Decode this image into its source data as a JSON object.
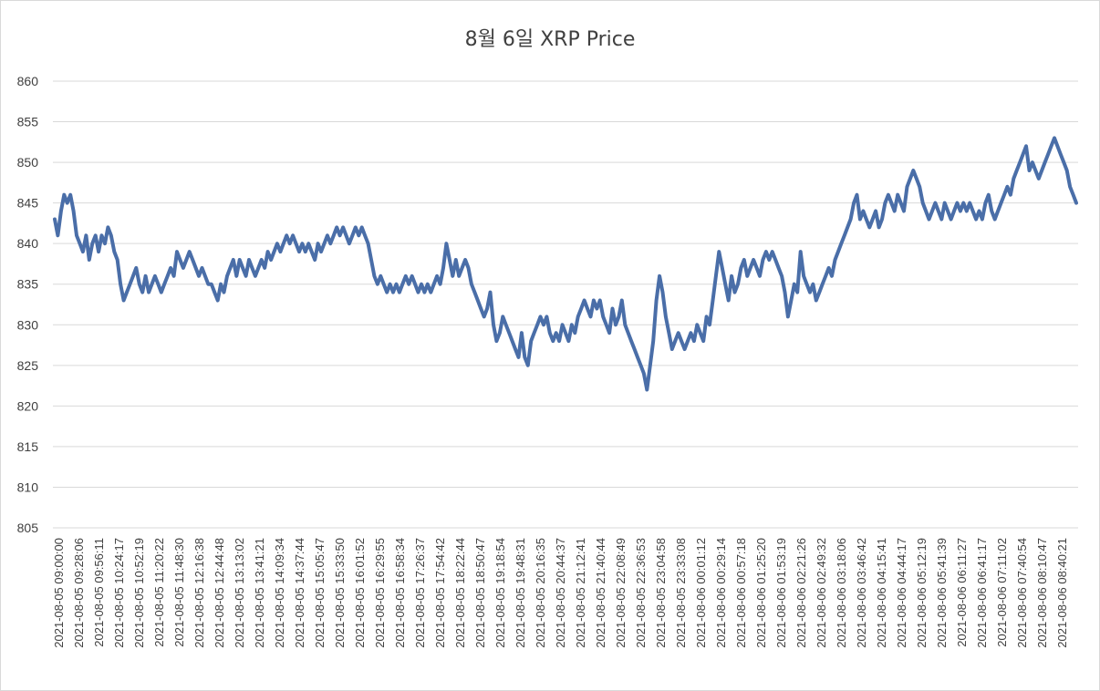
{
  "chart_data": {
    "type": "line",
    "title": "8월 6일 XRP Price",
    "xlabel": "",
    "ylabel": "",
    "ylim": [
      805,
      860
    ],
    "yticks": [
      805,
      810,
      815,
      820,
      825,
      830,
      835,
      840,
      845,
      850,
      855,
      860
    ],
    "grid": true,
    "legend": "none",
    "color": "#4a6ea8",
    "x_tick_labels": [
      "2021-08-05 09:00:00",
      "2021-08-05 09:28:06",
      "2021-08-05 09:56:11",
      "2021-08-05 10:24:17",
      "2021-08-05 10:52:19",
      "2021-08-05 11:20:22",
      "2021-08-05 11:48:30",
      "2021-08-05 12:16:38",
      "2021-08-05 12:44:48",
      "2021-08-05 13:13:02",
      "2021-08-05 13:41:21",
      "2021-08-05 14:09:34",
      "2021-08-05 14:37:44",
      "2021-08-05 15:05:47",
      "2021-08-05 15:33:50",
      "2021-08-05 16:01:52",
      "2021-08-05 16:29:55",
      "2021-08-05 16:58:34",
      "2021-08-05 17:26:37",
      "2021-08-05 17:54:42",
      "2021-08-05 18:22:44",
      "2021-08-05 18:50:47",
      "2021-08-05 19:18:54",
      "2021-08-05 19:48:31",
      "2021-08-05 20:16:35",
      "2021-08-05 20:44:37",
      "2021-08-05 21:12:41",
      "2021-08-05 21:40:44",
      "2021-08-05 22:08:49",
      "2021-08-05 22:36:53",
      "2021-08-05 23:04:58",
      "2021-08-05 23:33:08",
      "2021-08-06 00:01:12",
      "2021-08-06 00:29:14",
      "2021-08-06 00:57:18",
      "2021-08-06 01:25:20",
      "2021-08-06 01:53:19",
      "2021-08-06 02:21:26",
      "2021-08-06 02:49:32",
      "2021-08-06 03:18:06",
      "2021-08-06 03:46:42",
      "2021-08-06 04:15:41",
      "2021-08-06 04:44:17",
      "2021-08-06 05:12:19",
      "2021-08-06 05:41:39",
      "2021-08-06 06:11:27",
      "2021-08-06 06:41:17",
      "2021-08-06 07:11:02",
      "2021-08-06 07:40:54",
      "2021-08-06 08:10:47",
      "2021-08-06 08:40:21"
    ],
    "series": [
      {
        "values": [
          843,
          841,
          844,
          846,
          845,
          846,
          844,
          841,
          840,
          839,
          841,
          838,
          840,
          841,
          839,
          841,
          840,
          842,
          841,
          839,
          838,
          835,
          833,
          834,
          835,
          836,
          837,
          835,
          834,
          836,
          834,
          835,
          836,
          835,
          834,
          835,
          836,
          837,
          836,
          839,
          838,
          837,
          838,
          839,
          838,
          837,
          836,
          837,
          836,
          835,
          835,
          834,
          833,
          835,
          834,
          836,
          837,
          838,
          836,
          838,
          837,
          836,
          838,
          837,
          836,
          837,
          838,
          837,
          839,
          838,
          839,
          840,
          839,
          840,
          841,
          840,
          841,
          840,
          839,
          840,
          839,
          840,
          839,
          838,
          840,
          839,
          840,
          841,
          840,
          841,
          842,
          841,
          842,
          841,
          840,
          841,
          842,
          841,
          842,
          841,
          840,
          838,
          836,
          835,
          836,
          835,
          834,
          835,
          834,
          835,
          834,
          835,
          836,
          835,
          836,
          835,
          834,
          835,
          834,
          835,
          834,
          835,
          836,
          835,
          837,
          840,
          838,
          836,
          838,
          836,
          837,
          838,
          837,
          835,
          834,
          833,
          832,
          831,
          832,
          834,
          830,
          828,
          829,
          831,
          830,
          829,
          828,
          827,
          826,
          829,
          826,
          825,
          828,
          829,
          830,
          831,
          830,
          831,
          829,
          828,
          829,
          828,
          830,
          829,
          828,
          830,
          829,
          831,
          832,
          833,
          832,
          831,
          833,
          832,
          833,
          831,
          830,
          829,
          832,
          830,
          831,
          833,
          830,
          829,
          828,
          827,
          826,
          825,
          824,
          822,
          825,
          828,
          833,
          836,
          834,
          831,
          829,
          827,
          828,
          829,
          828,
          827,
          828,
          829,
          828,
          830,
          829,
          828,
          831,
          830,
          833,
          836,
          839,
          837,
          835,
          833,
          836,
          834,
          835,
          837,
          838,
          836,
          837,
          838,
          837,
          836,
          838,
          839,
          838,
          839,
          838,
          837,
          836,
          834,
          831,
          833,
          835,
          834,
          839,
          836,
          835,
          834,
          835,
          833,
          834,
          835,
          836,
          837,
          836,
          838,
          839,
          840,
          841,
          842,
          843,
          845,
          846,
          843,
          844,
          843,
          842,
          843,
          844,
          842,
          843,
          845,
          846,
          845,
          844,
          846,
          845,
          844,
          847,
          848,
          849,
          848,
          847,
          845,
          844,
          843,
          844,
          845,
          844,
          843,
          845,
          844,
          843,
          844,
          845,
          844,
          845,
          844,
          845,
          844,
          843,
          844,
          843,
          845,
          846,
          844,
          843,
          844,
          845,
          846,
          847,
          846,
          848,
          849,
          850,
          851,
          852,
          849,
          850,
          849,
          848,
          849,
          850,
          851,
          852,
          853,
          852,
          851,
          850,
          849,
          847,
          846,
          845
        ]
      }
    ]
  }
}
